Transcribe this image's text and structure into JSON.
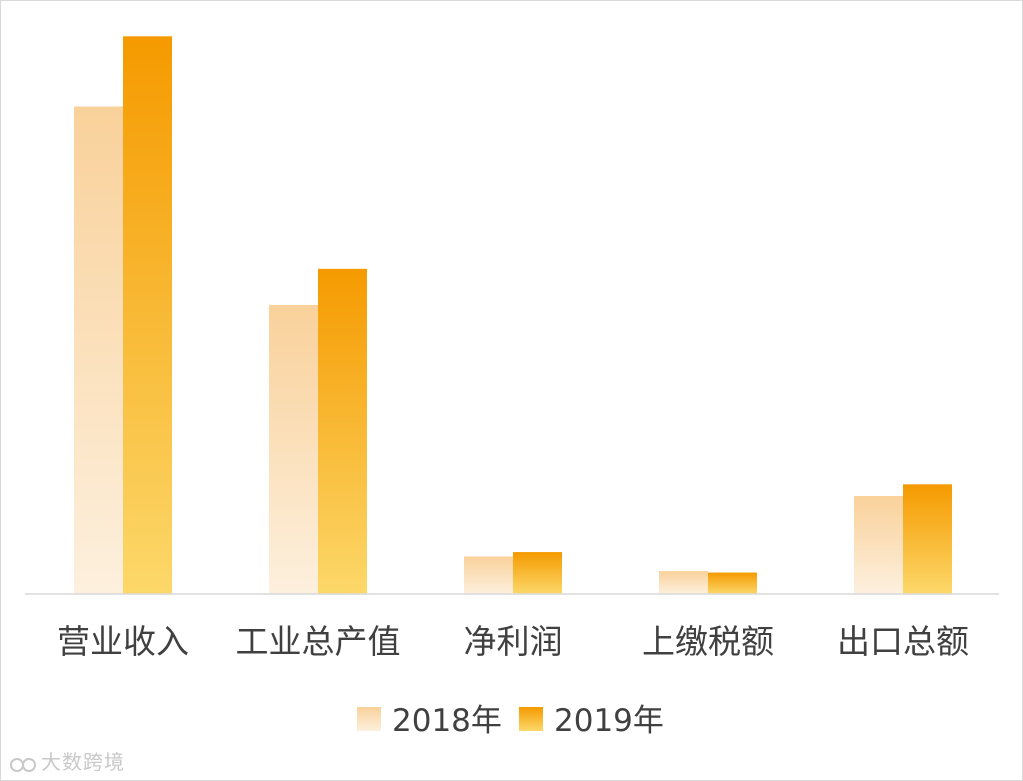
{
  "chart_data": {
    "type": "bar",
    "categories": [
      "营业收入",
      "工业总产值",
      "净利润",
      "上缴税额",
      "出口总额"
    ],
    "series": [
      {
        "name": "2018年",
        "values": [
          100,
          59.3,
          7.7,
          4.7,
          20.1
        ]
      },
      {
        "name": "2019年",
        "values": [
          114.4,
          66.7,
          8.6,
          4.4,
          22.5
        ]
      }
    ],
    "ylim": [
      0,
      120
    ],
    "grid": false,
    "legend": "bottom-center",
    "colors": {
      "2018年": [
        "#f9d19a",
        "#fdf0de"
      ],
      "2019年": [
        "#f59a00",
        "#fcd86a"
      ],
      "axis": "#d9d9d9",
      "text": "#404040"
    }
  },
  "watermark": {
    "text": "大数跨境"
  }
}
